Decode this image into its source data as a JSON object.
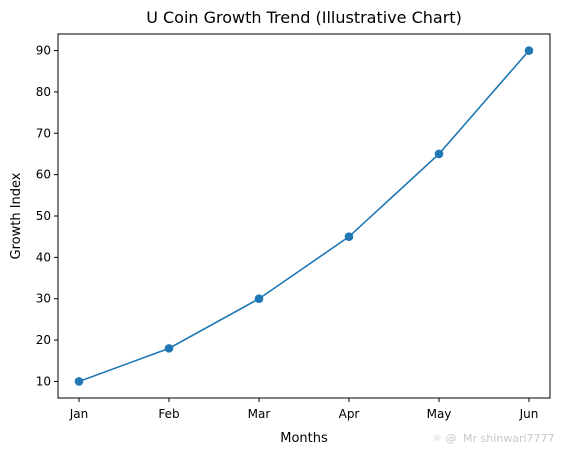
{
  "chart_data": {
    "type": "line",
    "title": "U Coin Growth Trend (Illustrative Chart)",
    "xlabel": "Months",
    "ylabel": "Growth Index",
    "categories": [
      "Jan",
      "Feb",
      "Mar",
      "Apr",
      "May",
      "Jun"
    ],
    "series": [
      {
        "values": [
          10,
          18,
          30,
          45,
          65,
          90
        ],
        "color": "#1f77b4",
        "marker": "circle"
      }
    ],
    "ylim": [
      6,
      94
    ],
    "yticks": [
      10,
      20,
      30,
      40,
      50,
      60,
      70,
      80,
      90
    ],
    "grid": false,
    "legend": "none"
  },
  "watermark": {
    "text": "Mr shinwari7777"
  }
}
